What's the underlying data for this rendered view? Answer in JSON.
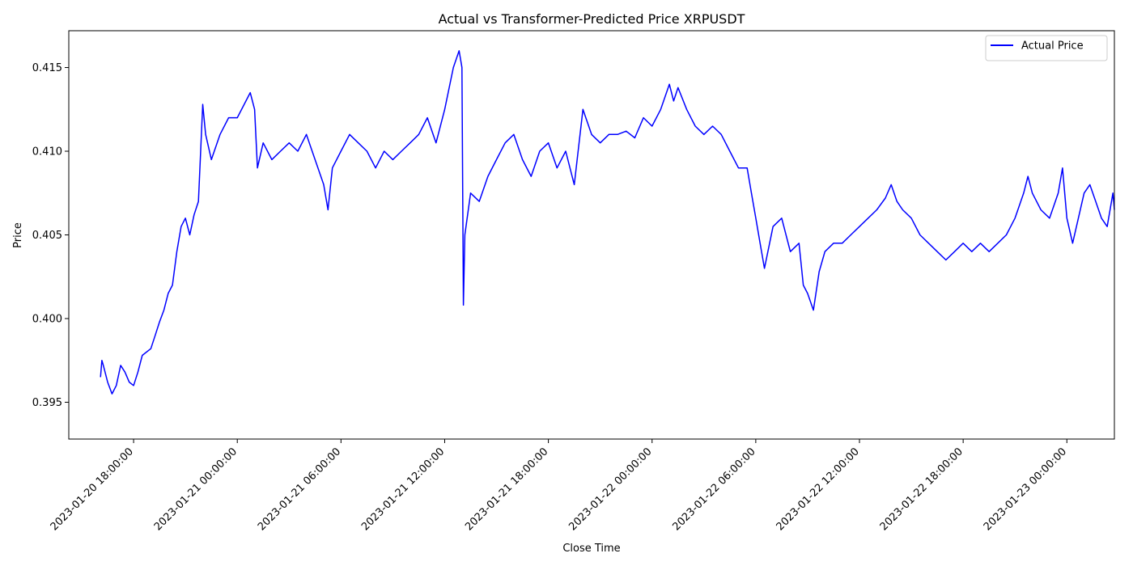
{
  "chart_data": {
    "type": "line",
    "title": "Actual vs Transformer-Predicted Price XRPUSDT",
    "xlabel": "Close Time",
    "ylabel": "Price",
    "x_ticks": [
      "2023-01-20 18:00:00",
      "2023-01-21 00:00:00",
      "2023-01-21 06:00:00",
      "2023-01-21 12:00:00",
      "2023-01-21 18:00:00",
      "2023-01-22 00:00:00",
      "2023-01-22 06:00:00",
      "2023-01-22 12:00:00",
      "2023-01-22 18:00:00",
      "2023-01-23 00:00:00"
    ],
    "y_ticks": [
      0.395,
      0.4,
      0.405,
      0.41,
      0.415
    ],
    "y_tick_labels": [
      "0.395",
      "0.400",
      "0.405",
      "0.410",
      "0.415"
    ],
    "xlim": [
      "2023-01-20 14:15:00",
      "2023-01-23 02:45:00"
    ],
    "ylim": [
      0.3928,
      0.4172
    ],
    "legend_position": "upper-right",
    "grid": false,
    "series": [
      {
        "name": "Actual Price",
        "color": "#0000ff",
        "style": "solid",
        "points": [
          [
            "2023-01-20 16:05:00",
            0.3965
          ],
          [
            "2023-01-20 16:10:00",
            0.3975
          ],
          [
            "2023-01-20 16:15:00",
            0.3972
          ],
          [
            "2023-01-20 16:30:00",
            0.3962
          ],
          [
            "2023-01-20 16:45:00",
            0.3955
          ],
          [
            "2023-01-20 17:00:00",
            0.396
          ],
          [
            "2023-01-20 17:15:00",
            0.3972
          ],
          [
            "2023-01-20 17:30:00",
            0.3968
          ],
          [
            "2023-01-20 17:45:00",
            0.3962
          ],
          [
            "2023-01-20 18:00:00",
            0.396
          ],
          [
            "2023-01-20 18:15:00",
            0.3968
          ],
          [
            "2023-01-20 18:30:00",
            0.3978
          ],
          [
            "2023-01-20 19:00:00",
            0.3982
          ],
          [
            "2023-01-20 19:15:00",
            0.399
          ],
          [
            "2023-01-20 19:30:00",
            0.3998
          ],
          [
            "2023-01-20 19:45:00",
            0.4005
          ],
          [
            "2023-01-20 20:00:00",
            0.4015
          ],
          [
            "2023-01-20 20:15:00",
            0.402
          ],
          [
            "2023-01-20 20:30:00",
            0.404
          ],
          [
            "2023-01-20 20:45:00",
            0.4055
          ],
          [
            "2023-01-20 21:00:00",
            0.406
          ],
          [
            "2023-01-20 21:15:00",
            0.405
          ],
          [
            "2023-01-20 21:30:00",
            0.4062
          ],
          [
            "2023-01-20 21:45:00",
            0.407
          ],
          [
            "2023-01-20 22:00:00",
            0.4128
          ],
          [
            "2023-01-20 22:10:00",
            0.411
          ],
          [
            "2023-01-20 22:30:00",
            0.4095
          ],
          [
            "2023-01-20 23:00:00",
            0.411
          ],
          [
            "2023-01-20 23:30:00",
            0.412
          ],
          [
            "2023-01-21 00:00:00",
            0.412
          ],
          [
            "2023-01-21 00:30:00",
            0.413
          ],
          [
            "2023-01-21 00:45:00",
            0.4135
          ],
          [
            "2023-01-21 01:00:00",
            0.4125
          ],
          [
            "2023-01-21 01:10:00",
            0.409
          ],
          [
            "2023-01-21 01:30:00",
            0.4105
          ],
          [
            "2023-01-21 02:00:00",
            0.4095
          ],
          [
            "2023-01-21 02:30:00",
            0.41
          ],
          [
            "2023-01-21 03:00:00",
            0.4105
          ],
          [
            "2023-01-21 03:30:00",
            0.41
          ],
          [
            "2023-01-21 04:00:00",
            0.411
          ],
          [
            "2023-01-21 04:30:00",
            0.4095
          ],
          [
            "2023-01-21 05:00:00",
            0.408
          ],
          [
            "2023-01-21 05:15:00",
            0.4065
          ],
          [
            "2023-01-21 05:30:00",
            0.409
          ],
          [
            "2023-01-21 06:00:00",
            0.41
          ],
          [
            "2023-01-21 06:30:00",
            0.411
          ],
          [
            "2023-01-21 07:00:00",
            0.4105
          ],
          [
            "2023-01-21 07:30:00",
            0.41
          ],
          [
            "2023-01-21 08:00:00",
            0.409
          ],
          [
            "2023-01-21 08:30:00",
            0.41
          ],
          [
            "2023-01-21 09:00:00",
            0.4095
          ],
          [
            "2023-01-21 09:30:00",
            0.41
          ],
          [
            "2023-01-21 10:00:00",
            0.4105
          ],
          [
            "2023-01-21 10:30:00",
            0.411
          ],
          [
            "2023-01-21 11:00:00",
            0.412
          ],
          [
            "2023-01-21 11:30:00",
            0.4105
          ],
          [
            "2023-01-21 12:00:00",
            0.4125
          ],
          [
            "2023-01-21 12:30:00",
            0.415
          ],
          [
            "2023-01-21 12:50:00",
            0.416
          ],
          [
            "2023-01-21 13:00:00",
            0.415
          ],
          [
            "2023-01-21 13:05:00",
            0.4008
          ],
          [
            "2023-01-21 13:10:00",
            0.405
          ],
          [
            "2023-01-21 13:30:00",
            0.4075
          ],
          [
            "2023-01-21 14:00:00",
            0.407
          ],
          [
            "2023-01-21 14:30:00",
            0.4085
          ],
          [
            "2023-01-21 15:00:00",
            0.4095
          ],
          [
            "2023-01-21 15:30:00",
            0.4105
          ],
          [
            "2023-01-21 16:00:00",
            0.411
          ],
          [
            "2023-01-21 16:30:00",
            0.4095
          ],
          [
            "2023-01-21 17:00:00",
            0.4085
          ],
          [
            "2023-01-21 17:30:00",
            0.41
          ],
          [
            "2023-01-21 18:00:00",
            0.4105
          ],
          [
            "2023-01-21 18:30:00",
            0.409
          ],
          [
            "2023-01-21 19:00:00",
            0.41
          ],
          [
            "2023-01-21 19:30:00",
            0.408
          ],
          [
            "2023-01-21 20:00:00",
            0.4125
          ],
          [
            "2023-01-21 20:30:00",
            0.411
          ],
          [
            "2023-01-21 21:00:00",
            0.4105
          ],
          [
            "2023-01-21 21:30:00",
            0.411
          ],
          [
            "2023-01-21 22:00:00",
            0.411
          ],
          [
            "2023-01-21 22:30:00",
            0.4112
          ],
          [
            "2023-01-21 23:00:00",
            0.4108
          ],
          [
            "2023-01-21 23:30:00",
            0.412
          ],
          [
            "2023-01-22 00:00:00",
            0.4115
          ],
          [
            "2023-01-22 00:30:00",
            0.4125
          ],
          [
            "2023-01-22 01:00:00",
            0.414
          ],
          [
            "2023-01-22 01:15:00",
            0.413
          ],
          [
            "2023-01-22 01:30:00",
            0.4138
          ],
          [
            "2023-01-22 02:00:00",
            0.4125
          ],
          [
            "2023-01-22 02:30:00",
            0.4115
          ],
          [
            "2023-01-22 03:00:00",
            0.411
          ],
          [
            "2023-01-22 03:30:00",
            0.4115
          ],
          [
            "2023-01-22 04:00:00",
            0.411
          ],
          [
            "2023-01-22 04:30:00",
            0.41
          ],
          [
            "2023-01-22 05:00:00",
            0.409
          ],
          [
            "2023-01-22 05:30:00",
            0.409
          ],
          [
            "2023-01-22 05:45:00",
            0.4075
          ],
          [
            "2023-01-22 06:00:00",
            0.406
          ],
          [
            "2023-01-22 06:15:00",
            0.4045
          ],
          [
            "2023-01-22 06:30:00",
            0.403
          ],
          [
            "2023-01-22 07:00:00",
            0.4055
          ],
          [
            "2023-01-22 07:30:00",
            0.406
          ],
          [
            "2023-01-22 08:00:00",
            0.404
          ],
          [
            "2023-01-22 08:30:00",
            0.4045
          ],
          [
            "2023-01-22 08:45:00",
            0.402
          ],
          [
            "2023-01-22 09:00:00",
            0.4015
          ],
          [
            "2023-01-22 09:20:00",
            0.4005
          ],
          [
            "2023-01-22 09:40:00",
            0.4028
          ],
          [
            "2023-01-22 10:00:00",
            0.404
          ],
          [
            "2023-01-22 10:30:00",
            0.4045
          ],
          [
            "2023-01-22 11:00:00",
            0.4045
          ],
          [
            "2023-01-22 11:30:00",
            0.405
          ],
          [
            "2023-01-22 12:00:00",
            0.4055
          ],
          [
            "2023-01-22 12:30:00",
            0.406
          ],
          [
            "2023-01-22 13:00:00",
            0.4065
          ],
          [
            "2023-01-22 13:30:00",
            0.4072
          ],
          [
            "2023-01-22 13:50:00",
            0.408
          ],
          [
            "2023-01-22 14:10:00",
            0.407
          ],
          [
            "2023-01-22 14:30:00",
            0.4065
          ],
          [
            "2023-01-22 15:00:00",
            0.406
          ],
          [
            "2023-01-22 15:30:00",
            0.405
          ],
          [
            "2023-01-22 16:00:00",
            0.4045
          ],
          [
            "2023-01-22 16:30:00",
            0.404
          ],
          [
            "2023-01-22 17:00:00",
            0.4035
          ],
          [
            "2023-01-22 17:30:00",
            0.404
          ],
          [
            "2023-01-22 18:00:00",
            0.4045
          ],
          [
            "2023-01-22 18:30:00",
            0.404
          ],
          [
            "2023-01-22 19:00:00",
            0.4045
          ],
          [
            "2023-01-22 19:30:00",
            0.404
          ],
          [
            "2023-01-22 20:00:00",
            0.4045
          ],
          [
            "2023-01-22 20:30:00",
            0.405
          ],
          [
            "2023-01-22 21:00:00",
            0.406
          ],
          [
            "2023-01-22 21:30:00",
            0.4075
          ],
          [
            "2023-01-22 21:45:00",
            0.4085
          ],
          [
            "2023-01-22 22:00:00",
            0.4075
          ],
          [
            "2023-01-22 22:30:00",
            0.4065
          ],
          [
            "2023-01-22 23:00:00",
            0.406
          ],
          [
            "2023-01-22 23:30:00",
            0.4075
          ],
          [
            "2023-01-22 23:45:00",
            0.409
          ],
          [
            "2023-01-23 00:00:00",
            0.406
          ],
          [
            "2023-01-23 00:20:00",
            0.4045
          ],
          [
            "2023-01-23 00:40:00",
            0.406
          ],
          [
            "2023-01-23 01:00:00",
            0.4075
          ],
          [
            "2023-01-23 01:20:00",
            0.408
          ],
          [
            "2023-01-23 01:40:00",
            0.407
          ],
          [
            "2023-01-23 02:00:00",
            0.406
          ],
          [
            "2023-01-23 02:20:00",
            0.4055
          ],
          [
            "2023-01-23 02:40:00",
            0.4075
          ],
          [
            "2023-01-23 02:45:00",
            0.4065
          ]
        ]
      }
    ]
  }
}
